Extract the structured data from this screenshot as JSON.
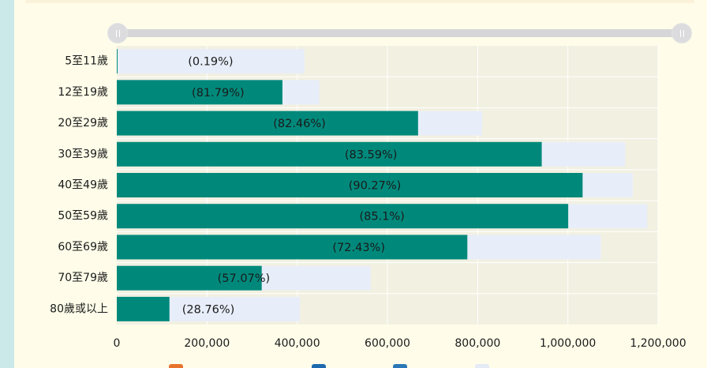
{
  "colors": {
    "page_background": "#fffde9",
    "side_strip": "#cce9ea",
    "top_band": "#fcf1d9",
    "plot_background": "#f2f0e1",
    "total_bar": "#e8eef9",
    "vaccinated_bar": "#00897b",
    "slider_track": "#d6d6d9",
    "slider_handle": "#dcdcde"
  },
  "slider": {
    "range_percent": [
      0,
      100
    ]
  },
  "legend": {
    "swatch_colors": [
      "#e8732d",
      "#1e6aae",
      "#2b78b6",
      "#e4eaf6"
    ]
  },
  "chart_data": {
    "type": "bar",
    "orientation": "horizontal",
    "categories": [
      "5至11歲",
      "12至19歲",
      "20至29歲",
      "30至39歲",
      "40至49歲",
      "50至59歲",
      "60至69歲",
      "70至79歲",
      "80歲或以上"
    ],
    "totals": [
      416000,
      449000,
      810000,
      1127000,
      1144000,
      1176000,
      1073000,
      563000,
      406000
    ],
    "values": [
      790,
      367240,
      667930,
      942060,
      1032690,
      1000780,
      777170,
      321300,
      116770
    ],
    "percent_labels": [
      "(0.19%)",
      "(81.79%)",
      "(82.46%)",
      "(83.59%)",
      "(90.27%)",
      "(85.1%)",
      "(72.43%)",
      "(57.07%)",
      "(28.76%)"
    ],
    "xlim": [
      0,
      1200000
    ],
    "x_ticks": [
      0,
      200000,
      400000,
      600000,
      800000,
      1000000,
      1200000
    ],
    "x_tick_labels": [
      "0",
      "200,000",
      "400,000",
      "600,000",
      "800,000",
      "1,000,000",
      "1,200,000"
    ],
    "grid": true
  }
}
